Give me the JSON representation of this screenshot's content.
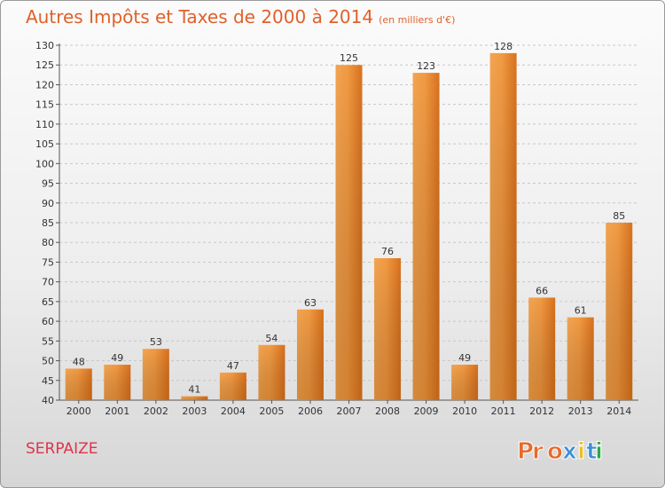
{
  "header": {
    "title": "Autres Impôts et Taxes de 2000 à 2014",
    "unit": "(en milliers d'€)"
  },
  "footer": {
    "commune": "SERPAIZE",
    "brand": "Proxiti"
  },
  "colors": {
    "title": "#e0612a",
    "commune": "#e0324a",
    "bar_light": "#f6a24e",
    "bar_dark": "#d9731f",
    "brand_letters": [
      "#e86a2a",
      "#e86a2a",
      "#e86a2a",
      "#3a8fd8",
      "#e8c020",
      "#3a8fd8",
      "#2aa84a"
    ]
  },
  "chart_data": {
    "type": "bar",
    "title": "Autres Impôts et Taxes de 2000 à 2014",
    "subtitle": "(en milliers d'€)",
    "xlabel": "",
    "ylabel": "",
    "categories": [
      "2000",
      "2001",
      "2002",
      "2003",
      "2004",
      "2005",
      "2006",
      "2007",
      "2008",
      "2009",
      "2010",
      "2011",
      "2012",
      "2013",
      "2014"
    ],
    "values": [
      48,
      49,
      53,
      41,
      47,
      54,
      63,
      125,
      76,
      123,
      49,
      128,
      66,
      61,
      85
    ],
    "ylim": [
      40,
      130
    ],
    "ytick_step": 5,
    "grid": "horizontal-dashed",
    "legend": "none"
  }
}
